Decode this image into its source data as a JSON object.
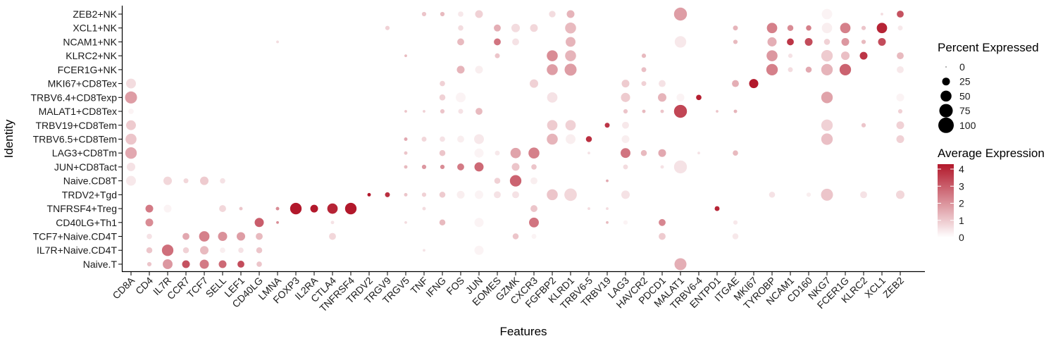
{
  "chart_data": {
    "type": "dotplot",
    "xlabel": "Features",
    "ylabel": "Identity",
    "features": [
      "CD8A",
      "CD4",
      "IL7R",
      "CCR7",
      "TCF7",
      "SELL",
      "LEF1",
      "CD40LG",
      "LMNA",
      "FOXP3",
      "IL2RA",
      "CTLA4",
      "TNFRSF4",
      "TRDV2",
      "TRGV9",
      "TRGV5",
      "TNF",
      "IFNG",
      "FOS",
      "JUN",
      "EOMES",
      "GZMK",
      "CXCR3",
      "FGFBP2",
      "KLRD1",
      "TRBV6-5",
      "TRBV19",
      "LAG3",
      "HAVCR2",
      "PDCD1",
      "MALAT1",
      "TRBV6-4",
      "ENTPD1",
      "ITGAE",
      "MKI67",
      "TYROBP",
      "NCAM1",
      "CD160",
      "NKG7",
      "FCER1G",
      "KLRC2",
      "XCL1",
      "ZEB2"
    ],
    "identities": [
      "ZEB2+NK",
      "XCL1+NK",
      "NCAM1+NK",
      "KLRC2+NK",
      "FCER1G+NK",
      "MKI67+CD8Tex",
      "TRBV6.4+CD8Texp",
      "MALAT1+CD8Tex",
      "TRBV19+CD8Tem",
      "TRBV6.5+CD8Tem",
      "LAG3+CD8Tm",
      "JUN+CD8Tact",
      "Naive.CD8T",
      "TRDV2+Tgd",
      "TNFRSF4+Treg",
      "CD40LG+Th1",
      "TCF7+Naive.CD4T",
      "IL7R+Naive.CD4T",
      "Naive.T"
    ],
    "legend_size": {
      "title": "Percent Expressed",
      "values": [
        0,
        25,
        50,
        75,
        100
      ],
      "labels": [
        "0",
        "25",
        "50",
        "75",
        "100"
      ]
    },
    "legend_color": {
      "title": "Average Expression",
      "range": [
        0,
        4
      ],
      "labels": [
        "4",
        "3",
        "2",
        "1",
        "0"
      ],
      "low_color": "#ffffff",
      "high_color": "#b2182b"
    },
    "points": [
      [
        "ZEB2+NK",
        "TNF",
        8,
        1.0
      ],
      [
        "ZEB2+NK",
        "IFNG",
        8,
        1.2
      ],
      [
        "ZEB2+NK",
        "FOS",
        12,
        0.4
      ],
      [
        "ZEB2+NK",
        "JUN",
        25,
        0.8
      ],
      [
        "ZEB2+NK",
        "FGFBP2",
        18,
        0.6
      ],
      [
        "ZEB2+NK",
        "KLRD1",
        25,
        1.3
      ],
      [
        "ZEB2+NK",
        "MALAT1",
        70,
        1.7
      ],
      [
        "ZEB2+NK",
        "NKG7",
        45,
        0.2
      ],
      [
        "ZEB2+NK",
        "XCL1",
        3,
        0.6
      ],
      [
        "ZEB2+NK",
        "ZEB2",
        20,
        3.0
      ],
      [
        "XCL1+NK",
        "TRGV9",
        8,
        0.8
      ],
      [
        "XCL1+NK",
        "FOS",
        12,
        0.6
      ],
      [
        "XCL1+NK",
        "EOMES",
        20,
        1.4
      ],
      [
        "XCL1+NK",
        "GZMK",
        30,
        0.6
      ],
      [
        "XCL1+NK",
        "CXCR3",
        25,
        0.7
      ],
      [
        "XCL1+NK",
        "KLRD1",
        50,
        1.2
      ],
      [
        "XCL1+NK",
        "ITGAE",
        10,
        1.3
      ],
      [
        "XCL1+NK",
        "TYROBP",
        45,
        2.2
      ],
      [
        "XCL1+NK",
        "NCAM1",
        15,
        2.0
      ],
      [
        "XCL1+NK",
        "CD160",
        12,
        2.2
      ],
      [
        "XCL1+NK",
        "NKG7",
        45,
        0.3
      ],
      [
        "XCL1+NK",
        "FCER1G",
        45,
        2.2
      ],
      [
        "XCL1+NK",
        "KLRC2",
        8,
        1.0
      ],
      [
        "XCL1+NK",
        "XCL1",
        45,
        3.8
      ],
      [
        "XCL1+NK",
        "ZEB2",
        10,
        0.4
      ],
      [
        "NCAM1+NK",
        "LMNA",
        3,
        0.6
      ],
      [
        "NCAM1+NK",
        "FOS",
        20,
        1.2
      ],
      [
        "NCAM1+NK",
        "EOMES",
        20,
        2.4
      ],
      [
        "NCAM1+NK",
        "GZMK",
        20,
        0.5
      ],
      [
        "NCAM1+NK",
        "KLRD1",
        40,
        1.3
      ],
      [
        "NCAM1+NK",
        "MALAT1",
        55,
        0.4
      ],
      [
        "NCAM1+NK",
        "ITGAE",
        8,
        1.2
      ],
      [
        "NCAM1+NK",
        "TYROBP",
        35,
        1.4
      ],
      [
        "NCAM1+NK",
        "NCAM1",
        20,
        3.5
      ],
      [
        "NCAM1+NK",
        "CD160",
        25,
        3.1
      ],
      [
        "NCAM1+NK",
        "NKG7",
        15,
        0.8
      ],
      [
        "NCAM1+NK",
        "FCER1G",
        25,
        1.8
      ],
      [
        "NCAM1+NK",
        "KLRC2",
        8,
        1.2
      ],
      [
        "NCAM1+NK",
        "XCL1",
        25,
        3.1
      ],
      [
        "KLRC2+NK",
        "TRGV5",
        3,
        1.2
      ],
      [
        "KLRC2+NK",
        "EOMES",
        10,
        1.0
      ],
      [
        "KLRC2+NK",
        "FGFBP2",
        50,
        2.0
      ],
      [
        "KLRC2+NK",
        "KLRD1",
        50,
        1.3
      ],
      [
        "KLRC2+NK",
        "HAVCR2",
        8,
        1.2
      ],
      [
        "KLRC2+NK",
        "TYROBP",
        50,
        1.8
      ],
      [
        "KLRC2+NK",
        "NCAM1",
        8,
        0.5
      ],
      [
        "KLRC2+NK",
        "NKG7",
        55,
        0.9
      ],
      [
        "KLRC2+NK",
        "FCER1G",
        30,
        1.1
      ],
      [
        "KLRC2+NK",
        "KLRC2",
        25,
        3.5
      ],
      [
        "KLRC2+NK",
        "ZEB2",
        20,
        1.2
      ],
      [
        "FCER1G+NK",
        "FOS",
        25,
        1.3
      ],
      [
        "FCER1G+NK",
        "JUN",
        25,
        0.3
      ],
      [
        "FCER1G+NK",
        "FGFBP2",
        50,
        1.7
      ],
      [
        "FCER1G+NK",
        "KLRD1",
        60,
        1.7
      ],
      [
        "FCER1G+NK",
        "HAVCR2",
        10,
        1.1
      ],
      [
        "FCER1G+NK",
        "TYROBP",
        55,
        2.2
      ],
      [
        "FCER1G+NK",
        "NCAM1",
        10,
        0.6
      ],
      [
        "FCER1G+NK",
        "CD160",
        15,
        1.5
      ],
      [
        "FCER1G+NK",
        "NKG7",
        55,
        1.3
      ],
      [
        "FCER1G+NK",
        "FCER1G",
        55,
        2.7
      ],
      [
        "FCER1G+NK",
        "ZEB2",
        20,
        0.4
      ],
      [
        "MKI67+CD8Tex",
        "CD8A",
        40,
        0.6
      ],
      [
        "MKI67+CD8Tex",
        "IFNG",
        12,
        0.8
      ],
      [
        "MKI67+CD8Tex",
        "CXCR3",
        30,
        0.8
      ],
      [
        "MKI67+CD8Tex",
        "LAG3",
        25,
        0.9
      ],
      [
        "MKI67+CD8Tex",
        "HAVCR2",
        10,
        0.8
      ],
      [
        "MKI67+CD8Tex",
        "PDCD1",
        20,
        0.5
      ],
      [
        "MKI67+CD8Tex",
        "ITGAE",
        20,
        1.4
      ],
      [
        "MKI67+CD8Tex",
        "MKI67",
        35,
        4.0
      ],
      [
        "TRBV6.4+CD8Texp",
        "CD8A",
        60,
        1.7
      ],
      [
        "TRBV6.4+CD8Texp",
        "IFNG",
        15,
        0.8
      ],
      [
        "TRBV6.4+CD8Texp",
        "FOS",
        40,
        0.2
      ],
      [
        "TRBV6.4+CD8Texp",
        "FGFBP2",
        45,
        0.5
      ],
      [
        "TRBV6.4+CD8Texp",
        "LAG3",
        35,
        0.9
      ],
      [
        "TRBV6.4+CD8Texp",
        "PDCD1",
        30,
        1.3
      ],
      [
        "TRBV6.4+CD8Texp",
        "MALAT1",
        25,
        0.2
      ],
      [
        "TRBV6.4+CD8Texp",
        "TRBV6-4",
        12,
        3.9
      ],
      [
        "TRBV6.4+CD8Texp",
        "NKG7",
        55,
        1.6
      ],
      [
        "TRBV6.4+CD8Texp",
        "ZEB2",
        25,
        0.2
      ],
      [
        "MALAT1+CD8Tex",
        "CD8A",
        12,
        0.2
      ],
      [
        "MALAT1+CD8Tex",
        "TRGV5",
        3,
        1.0
      ],
      [
        "MALAT1+CD8Tex",
        "TNF",
        3,
        0.8
      ],
      [
        "MALAT1+CD8Tex",
        "IFNG",
        8,
        1.0
      ],
      [
        "MALAT1+CD8Tex",
        "FOS",
        10,
        0.5
      ],
      [
        "MALAT1+CD8Tex",
        "JUN",
        20,
        1.2
      ],
      [
        "MALAT1+CD8Tex",
        "LAG3",
        8,
        1.0
      ],
      [
        "MALAT1+CD8Tex",
        "HAVCR2",
        5,
        1.2
      ],
      [
        "MALAT1+CD8Tex",
        "PDCD1",
        5,
        1.0
      ],
      [
        "MALAT1+CD8Tex",
        "MALAT1",
        70,
        3.2
      ],
      [
        "MALAT1+CD8Tex",
        "ENTPD1",
        3,
        1.0
      ],
      [
        "MALAT1+CD8Tex",
        "ITGAE",
        5,
        1.3
      ],
      [
        "MALAT1+CD8Tex",
        "ZEB2",
        8,
        0.8
      ],
      [
        "TRBV19+CD8Tem",
        "CD8A",
        40,
        0.9
      ],
      [
        "TRBV19+CD8Tem",
        "FGFBP2",
        45,
        0.9
      ],
      [
        "TRBV19+CD8Tem",
        "KLRD1",
        45,
        0.8
      ],
      [
        "TRBV19+CD8Tem",
        "TRBV19",
        10,
        3.5
      ],
      [
        "TRBV19+CD8Tem",
        "LAG3",
        20,
        0.4
      ],
      [
        "TRBV19+CD8Tem",
        "NKG7",
        55,
        0.8
      ],
      [
        "TRBV19+CD8Tem",
        "KLRC2",
        8,
        1.0
      ],
      [
        "TRBV19+CD8Tem",
        "ZEB2",
        25,
        0.8
      ],
      [
        "TRBV6.5+CD8Tem",
        "CD8A",
        50,
        1.0
      ],
      [
        "TRBV6.5+CD8Tem",
        "TRGV5",
        5,
        1.5
      ],
      [
        "TRBV6.5+CD8Tem",
        "TNF",
        10,
        0.7
      ],
      [
        "TRBV6.5+CD8Tem",
        "IFNG",
        12,
        0.5
      ],
      [
        "TRBV6.5+CD8Tem",
        "FOS",
        20,
        0.3
      ],
      [
        "TRBV6.5+CD8Tem",
        "JUN",
        40,
        0.4
      ],
      [
        "TRBV6.5+CD8Tem",
        "FGFBP2",
        50,
        1.3
      ],
      [
        "TRBV6.5+CD8Tem",
        "KLRD1",
        40,
        0.3
      ],
      [
        "TRBV6.5+CD8Tem",
        "TRBV6-5",
        15,
        3.6
      ],
      [
        "TRBV6.5+CD8Tem",
        "LAG3",
        25,
        0.3
      ],
      [
        "TRBV6.5+CD8Tem",
        "NKG7",
        55,
        1.1
      ],
      [
        "TRBV6.5+CD8Tem",
        "ZEB2",
        25,
        0.8
      ],
      [
        "LAG3+CD8Tm",
        "CD8A",
        55,
        1.5
      ],
      [
        "LAG3+CD8Tm",
        "TRGV5",
        5,
        1.0
      ],
      [
        "LAG3+CD8Tm",
        "IFNG",
        15,
        1.0
      ],
      [
        "LAG3+CD8Tm",
        "JUN",
        35,
        0.2
      ],
      [
        "LAG3+CD8Tm",
        "EOMES",
        10,
        0.4
      ],
      [
        "LAG3+CD8Tm",
        "GZMK",
        45,
        1.6
      ],
      [
        "LAG3+CD8Tm",
        "CXCR3",
        50,
        2.2
      ],
      [
        "LAG3+CD8Tm",
        "TRBV6-5",
        3,
        0.5
      ],
      [
        "LAG3+CD8Tm",
        "LAG3",
        40,
        2.4
      ],
      [
        "LAG3+CD8Tm",
        "HAVCR2",
        15,
        1.2
      ],
      [
        "LAG3+CD8Tm",
        "PDCD1",
        25,
        1.5
      ],
      [
        "LAG3+CD8Tm",
        "TRBV6-4",
        3,
        0.5
      ],
      [
        "LAG3+CD8Tm",
        "ITGAE",
        12,
        1.2
      ],
      [
        "JUN+CD8Tact",
        "CD8A",
        30,
        0.5
      ],
      [
        "JUN+CD8Tact",
        "TRGV5",
        5,
        1.2
      ],
      [
        "JUN+CD8Tact",
        "TNF",
        8,
        1.8
      ],
      [
        "JUN+CD8Tact",
        "IFNG",
        8,
        2.0
      ],
      [
        "JUN+CD8Tact",
        "FOS",
        20,
        2.3
      ],
      [
        "JUN+CD8Tact",
        "JUN",
        35,
        2.6
      ],
      [
        "JUN+CD8Tact",
        "GZMK",
        25,
        1.0
      ],
      [
        "JUN+CD8Tact",
        "CXCR3",
        12,
        1.0
      ],
      [
        "JUN+CD8Tact",
        "LAG3",
        10,
        0.6
      ],
      [
        "JUN+CD8Tact",
        "PDCD1",
        5,
        0.5
      ],
      [
        "JUN+CD8Tact",
        "MALAT1",
        70,
        0.5
      ],
      [
        "Naive.CD8T",
        "CD8A",
        40,
        0.4
      ],
      [
        "Naive.CD8T",
        "IL7R",
        30,
        0.7
      ],
      [
        "Naive.CD8T",
        "CCR7",
        10,
        0.7
      ],
      [
        "Naive.CD8T",
        "TCF7",
        30,
        0.9
      ],
      [
        "Naive.CD8T",
        "SELL",
        12,
        0.5
      ],
      [
        "Naive.CD8T",
        "EOMES",
        15,
        0.8
      ],
      [
        "Naive.CD8T",
        "GZMK",
        55,
        2.7
      ],
      [
        "Naive.CD8T",
        "CXCR3",
        20,
        0.3
      ],
      [
        "Naive.CD8T",
        "TRBV19",
        3,
        1.5
      ],
      [
        "TRDV2+Tgd",
        "TRDV2",
        5,
        4.0
      ],
      [
        "TRDV2+Tgd",
        "TRGV9",
        10,
        3.6
      ],
      [
        "TRDV2+Tgd",
        "TRGV5",
        5,
        1.0
      ],
      [
        "TRDV2+Tgd",
        "TNF",
        8,
        0.8
      ],
      [
        "TRDV2+Tgd",
        "IFNG",
        15,
        0.9
      ],
      [
        "TRDV2+Tgd",
        "FOS",
        25,
        0.3
      ],
      [
        "TRDV2+Tgd",
        "JUN",
        30,
        0.2
      ],
      [
        "TRDV2+Tgd",
        "EOMES",
        20,
        0.5
      ],
      [
        "TRDV2+Tgd",
        "GZMK",
        20,
        0.5
      ],
      [
        "TRDV2+Tgd",
        "FGFBP2",
        50,
        1.0
      ],
      [
        "TRDV2+Tgd",
        "KLRD1",
        65,
        0.7
      ],
      [
        "TRDV2+Tgd",
        "LAG3",
        30,
        0.5
      ],
      [
        "TRDV2+Tgd",
        "TYROBP",
        15,
        0.5
      ],
      [
        "TRDV2+Tgd",
        "CD160",
        8,
        0.3
      ],
      [
        "TRDV2+Tgd",
        "NKG7",
        60,
        1.0
      ],
      [
        "TRDV2+Tgd",
        "KLRC2",
        20,
        0.5
      ],
      [
        "TRDV2+Tgd",
        "ZEB2",
        30,
        0.7
      ],
      [
        "TNFRSF4+Treg",
        "CD4",
        25,
        2.3
      ],
      [
        "TNFRSF4+Treg",
        "IL7R",
        25,
        0.2
      ],
      [
        "TNFRSF4+Treg",
        "SELL",
        20,
        0.7
      ],
      [
        "TNFRSF4+Treg",
        "LEF1",
        5,
        1.0
      ],
      [
        "TNFRSF4+Treg",
        "LMNA",
        5,
        2.0
      ],
      [
        "TNFRSF4+Treg",
        "FOXP3",
        55,
        4.0
      ],
      [
        "TNFRSF4+Treg",
        "IL2RA",
        25,
        4.0
      ],
      [
        "TNFRSF4+Treg",
        "CTLA4",
        45,
        3.8
      ],
      [
        "TNFRSF4+Treg",
        "TNFRSF4",
        55,
        4.0
      ],
      [
        "TNFRSF4+Treg",
        "TNF",
        5,
        0.6
      ],
      [
        "TNFRSF4+Treg",
        "CXCR3",
        20,
        1.0
      ],
      [
        "TNFRSF4+Treg",
        "TRBV6-5",
        3,
        0.6
      ],
      [
        "TNFRSF4+Treg",
        "TRBV19",
        3,
        0.6
      ],
      [
        "TNFRSF4+Treg",
        "ENTPD1",
        10,
        3.8
      ],
      [
        "CD40LG+Th1",
        "CD4",
        25,
        2.0
      ],
      [
        "CD40LG+Th1",
        "CD40LG",
        35,
        2.8
      ],
      [
        "CD40LG+Th1",
        "LMNA",
        3,
        2.0
      ],
      [
        "CD40LG+Th1",
        "CTLA4",
        5,
        0.5
      ],
      [
        "CD40LG+Th1",
        "TRGV5",
        3,
        0.6
      ],
      [
        "CD40LG+Th1",
        "IFNG",
        15,
        1.2
      ],
      [
        "CD40LG+Th1",
        "JUN",
        35,
        0.2
      ],
      [
        "CD40LG+Th1",
        "CXCR3",
        40,
        2.4
      ],
      [
        "CD40LG+Th1",
        "TRBV19",
        3,
        1.2
      ],
      [
        "CD40LG+Th1",
        "LAG3",
        8,
        0.2
      ],
      [
        "CD40LG+Th1",
        "PDCD1",
        20,
        2.1
      ],
      [
        "CD40LG+Th1",
        "ITGAE",
        8,
        0.4
      ],
      [
        "TCF7+Naive.CD4T",
        "CD4",
        12,
        0.5
      ],
      [
        "TCF7+Naive.CD4T",
        "CCR7",
        20,
        1.5
      ],
      [
        "TCF7+Naive.CD4T",
        "TCF7",
        45,
        2.2
      ],
      [
        "TCF7+Naive.CD4T",
        "SELL",
        35,
        1.9
      ],
      [
        "TCF7+Naive.CD4T",
        "LEF1",
        30,
        1.7
      ],
      [
        "TCF7+Naive.CD4T",
        "CD40LG",
        20,
        1.2
      ],
      [
        "TCF7+Naive.CD4T",
        "CTLA4",
        20,
        0.7
      ],
      [
        "TCF7+Naive.CD4T",
        "GZMK",
        15,
        1.0
      ],
      [
        "TCF7+Naive.CD4T",
        "CXCR3",
        10,
        0.2
      ],
      [
        "TCF7+Naive.CD4T",
        "PDCD1",
        20,
        0.9
      ],
      [
        "TCF7+Naive.CD4T",
        "ITGAE",
        15,
        0.4
      ],
      [
        "IL7R+Naive.CD4T",
        "CD4",
        15,
        1.0
      ],
      [
        "IL7R+Naive.CD4T",
        "IL7R",
        55,
        2.5
      ],
      [
        "IL7R+Naive.CD4T",
        "CCR7",
        15,
        0.8
      ],
      [
        "IL7R+Naive.CD4T",
        "TCF7",
        30,
        1.2
      ],
      [
        "IL7R+Naive.CD4T",
        "SELL",
        12,
        0.3
      ],
      [
        "IL7R+Naive.CD4T",
        "LEF1",
        12,
        0.5
      ],
      [
        "IL7R+Naive.CD4T",
        "CD40LG",
        15,
        1.0
      ],
      [
        "IL7R+Naive.CD4T",
        "TNF",
        3,
        0.5
      ],
      [
        "IL7R+Naive.CD4T",
        "JUN",
        35,
        0.2
      ],
      [
        "Naive.T",
        "CD4",
        8,
        1.0
      ],
      [
        "Naive.T",
        "IL7R",
        40,
        1.8
      ],
      [
        "Naive.T",
        "CCR7",
        25,
        3.0
      ],
      [
        "Naive.T",
        "TCF7",
        35,
        2.3
      ],
      [
        "Naive.T",
        "SELL",
        25,
        2.6
      ],
      [
        "Naive.T",
        "LEF1",
        20,
        3.1
      ],
      [
        "Naive.T",
        "CD40LG",
        12,
        1.0
      ],
      [
        "Naive.T",
        "MALAT1",
        60,
        1.4
      ]
    ]
  }
}
